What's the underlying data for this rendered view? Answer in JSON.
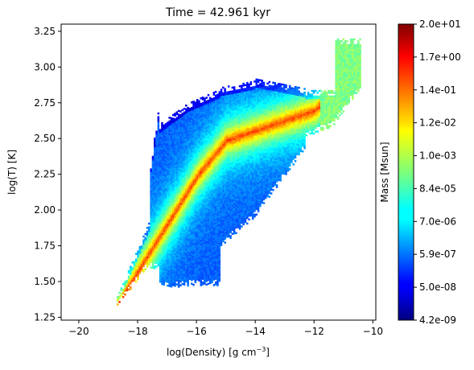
{
  "chart_data": {
    "type": "heatmap",
    "title": "Time = 42.961 kyr",
    "xlabel": "log(Density) [g cm",
    "xlabel_sup": "−3",
    "xlabel_end": "]",
    "ylabel": "log(T) [K]",
    "xlim": [
      -20.6,
      -9.9
    ],
    "ylim": [
      1.23,
      3.3
    ],
    "xticks": [
      -20,
      -18,
      -16,
      -14,
      -12,
      -10
    ],
    "xtick_labels": [
      "−20",
      "−18",
      "−16",
      "−14",
      "−12",
      "−10"
    ],
    "yticks": [
      1.25,
      1.5,
      1.75,
      2.0,
      2.25,
      2.5,
      2.75,
      3.0,
      3.25
    ],
    "ytick_labels": [
      "1.25",
      "1.50",
      "1.75",
      "2.00",
      "2.25",
      "2.50",
      "2.75",
      "3.00",
      "3.25"
    ],
    "colorbar": {
      "label": "Mass [Msun]",
      "colormap": "jet",
      "scale": "log",
      "tick_labels": [
        "4.2e-09",
        "5.0e-08",
        "5.9e-07",
        "7.0e-06",
        "8.4e-05",
        "1.0e-03",
        "1.2e-02",
        "1.4e-01",
        "1.7e+00",
        "2.0e+01"
      ]
    },
    "distribution": {
      "description_points": [
        {
          "x": -18.7,
          "y": 1.33,
          "level": 0.85
        },
        {
          "x": -17.5,
          "y": 1.62,
          "level": 0.78
        },
        {
          "x": -16.8,
          "y": 1.9,
          "level": 0.72
        },
        {
          "x": -16.0,
          "y": 2.2,
          "level": 0.6
        },
        {
          "x": -15.5,
          "y": 2.45,
          "level": 0.5
        },
        {
          "x": -14.5,
          "y": 2.6,
          "level": 0.4
        },
        {
          "x": -13.0,
          "y": 2.7,
          "level": 0.35
        },
        {
          "x": -11.5,
          "y": 2.8,
          "level": 0.5
        },
        {
          "x": -10.8,
          "y": 3.15,
          "level": 0.55
        }
      ]
    }
  }
}
